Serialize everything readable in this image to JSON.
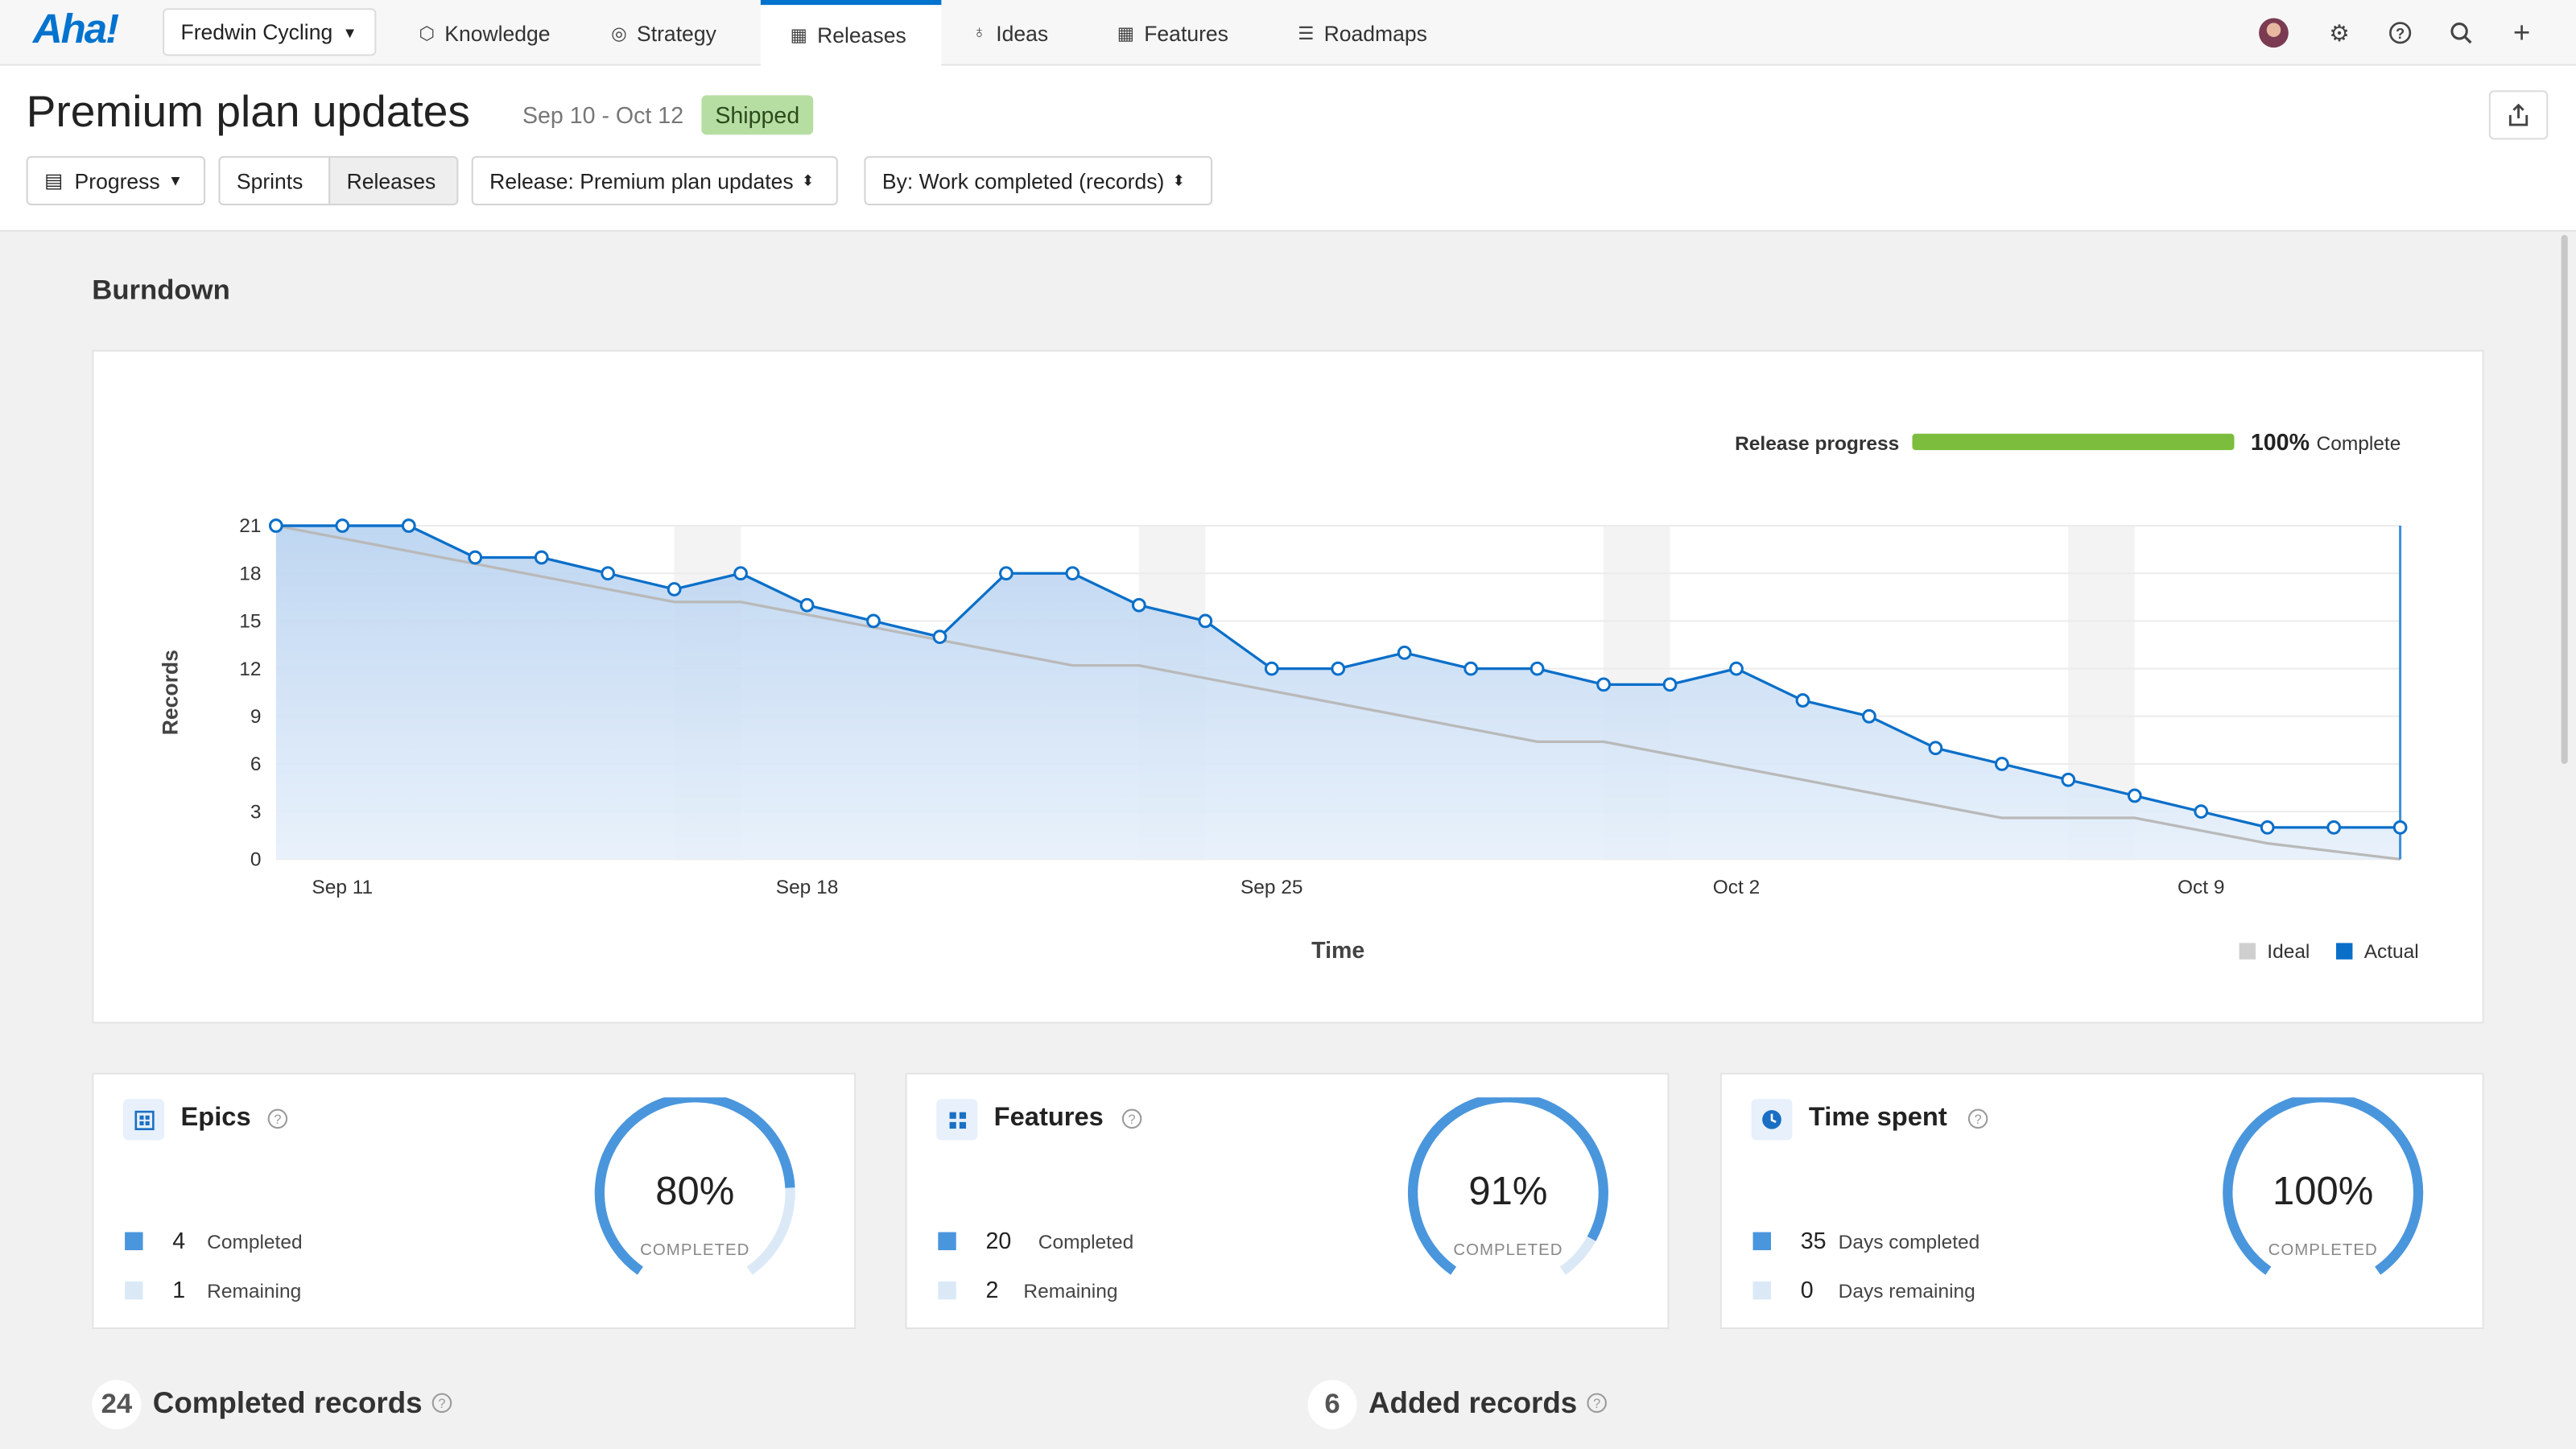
{
  "app": {
    "logo": "Aha!",
    "workspace": "Fredwin Cycling"
  },
  "nav": {
    "tabs": [
      {
        "label": "Knowledge",
        "icon": "cube-icon"
      },
      {
        "label": "Strategy",
        "icon": "target-icon"
      },
      {
        "label": "Releases",
        "icon": "calendar-icon",
        "active": true
      },
      {
        "label": "Ideas",
        "icon": "lightbulb-icon"
      },
      {
        "label": "Features",
        "icon": "grid-icon"
      },
      {
        "label": "Roadmaps",
        "icon": "roadmap-icon"
      }
    ]
  },
  "header": {
    "title": "Premium plan updates",
    "dates": "Sep 10 - Oct 12",
    "status": "Shipped",
    "progress_btn": "Progress",
    "sprints_btn": "Sprints",
    "releases_btn": "Releases",
    "release_select": "Release: Premium plan updates",
    "by_select": "By: Work completed (records)"
  },
  "burndown": {
    "section_title": "Burndown",
    "progress_label": "Release progress",
    "progress_pct": "100%",
    "progress_fraction": 1.0,
    "progress_complete": "Complete"
  },
  "chart_data": {
    "type": "line",
    "title": "Burndown",
    "xlabel": "Time",
    "ylabel": "Records",
    "ylim": [
      0,
      21
    ],
    "yticks": [
      0,
      3,
      6,
      9,
      12,
      15,
      18,
      21
    ],
    "xticks": [
      {
        "label": "Sep 11",
        "day": 1
      },
      {
        "label": "Sep 18",
        "day": 8
      },
      {
        "label": "Sep 25",
        "day": 15
      },
      {
        "label": "Oct 2",
        "day": 22
      },
      {
        "label": "Oct 9",
        "day": 29
      }
    ],
    "x_range_days": [
      0,
      32
    ],
    "weekends": [
      [
        6,
        7
      ],
      [
        13,
        14
      ],
      [
        20,
        21
      ],
      [
        27,
        28
      ]
    ],
    "series": [
      {
        "name": "Actual",
        "color": "#0a6fc9",
        "values": [
          21,
          21,
          21,
          19,
          19,
          18,
          17,
          18,
          16,
          15,
          14,
          18,
          18,
          16,
          15,
          12,
          12,
          13,
          12,
          12,
          11,
          11,
          12,
          10,
          9,
          7,
          6,
          5,
          4,
          3,
          2,
          2,
          2
        ]
      },
      {
        "name": "Ideal",
        "color": "#b9b9b9",
        "values": [
          21,
          20.2,
          19.4,
          18.6,
          17.8,
          17,
          16.2,
          16.2,
          15.4,
          14.6,
          13.8,
          13,
          12.2,
          12.2,
          11.4,
          10.6,
          9.8,
          9,
          8.2,
          7.4,
          7.4,
          6.6,
          5.8,
          5,
          4.2,
          3.4,
          2.6,
          2.6,
          2.6,
          1.8,
          1.0,
          0.5,
          0
        ]
      }
    ],
    "legend": [
      "Ideal",
      "Actual"
    ]
  },
  "metrics": [
    {
      "title": "Epics",
      "icon": "epic-icon",
      "completed": "4",
      "completed_label": "Completed",
      "remaining": "1",
      "remaining_label": "Remaining",
      "pct": "80%",
      "fraction": 0.8,
      "sub": "COMPLETED"
    },
    {
      "title": "Features",
      "icon": "feature-icon",
      "completed": "20",
      "completed_label": "Completed",
      "remaining": "2",
      "remaining_label": "Remaining",
      "pct": "91%",
      "fraction": 0.91,
      "sub": "COMPLETED"
    },
    {
      "title": "Time spent",
      "icon": "clock-icon",
      "completed": "35",
      "completed_label": "Days completed",
      "remaining": "0",
      "remaining_label": "Days remaining",
      "pct": "100%",
      "fraction": 1.0,
      "sub": "COMPLETED"
    }
  ],
  "bottom": {
    "completed_count": "24",
    "completed_title": "Completed records",
    "added_count": "6",
    "added_title": "Added records"
  }
}
